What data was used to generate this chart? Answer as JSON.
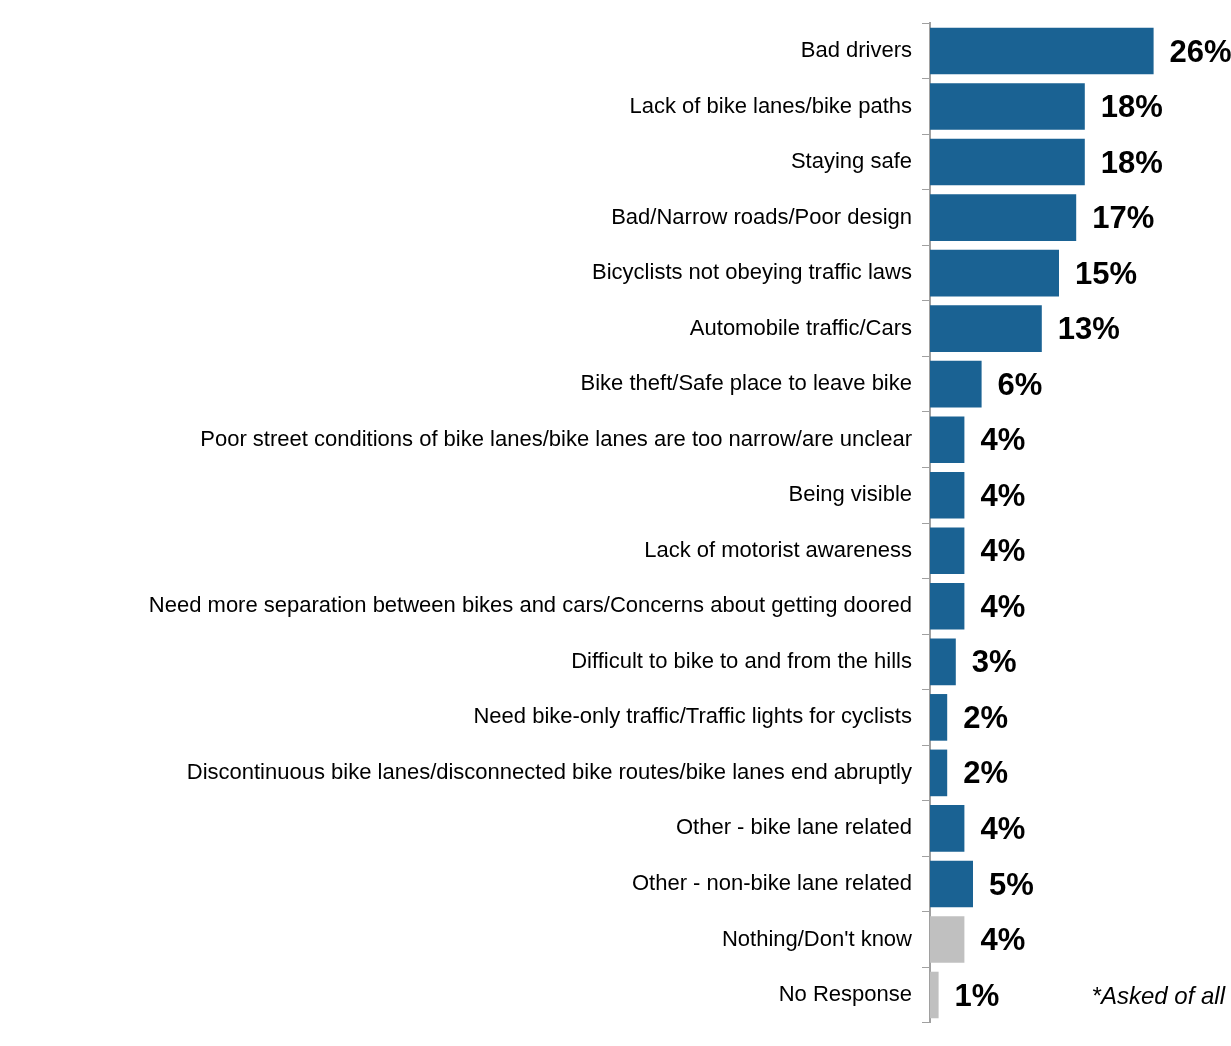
{
  "chart_data": {
    "type": "bar",
    "orientation": "horizontal",
    "categories": [
      "Bad drivers",
      "Lack of bike lanes/bike paths",
      "Staying safe",
      "Bad/Narrow roads/Poor design",
      "Bicyclists not obeying traffic laws",
      "Automobile traffic/Cars",
      "Bike theft/Safe place to leave bike",
      "Poor street conditions of bike lanes/bike lanes are too narrow/are unclear",
      "Being visible",
      "Lack of motorist awareness",
      "Need more separation between bikes and cars/Concerns about getting doored",
      "Difficult to bike to and from the hills",
      "Need bike-only traffic/Traffic lights for cyclists",
      "Discontinuous bike lanes/disconnected bike routes/bike lanes end abruptly",
      "Other - bike lane related",
      "Other - non-bike lane related",
      "Nothing/Don't know",
      "No Response"
    ],
    "values": [
      26,
      18,
      18,
      17,
      15,
      13,
      6,
      4,
      4,
      4,
      4,
      3,
      2,
      2,
      4,
      5,
      4,
      1
    ],
    "colors": [
      "#1a6293",
      "#1a6293",
      "#1a6293",
      "#1a6293",
      "#1a6293",
      "#1a6293",
      "#1a6293",
      "#1a6293",
      "#1a6293",
      "#1a6293",
      "#1a6293",
      "#1a6293",
      "#1a6293",
      "#1a6293",
      "#1a6293",
      "#1a6293",
      "#c0c0c0",
      "#c0c0c0"
    ],
    "value_labels": [
      "26%",
      "18%",
      "18%",
      "17%",
      "15%",
      "13%",
      "6%",
      "4%",
      "4%",
      "4%",
      "4%",
      "3%",
      "2%",
      "2%",
      "4%",
      "5%",
      "4%",
      "1%"
    ],
    "annotations": [
      "*Asked of all"
    ],
    "grid": false,
    "legend": false
  }
}
